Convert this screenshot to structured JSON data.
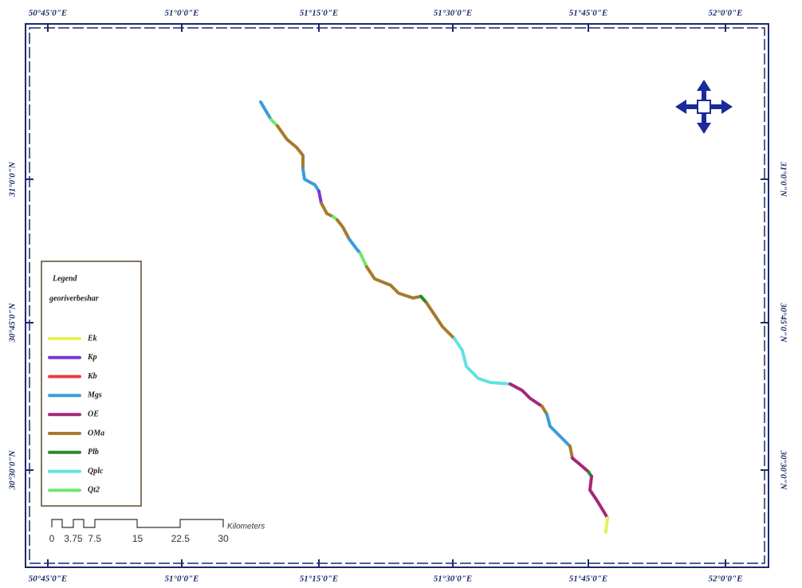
{
  "top_labels": [
    "50°45'0\"E",
    "51°0'0\"E",
    "51°15'0\"E",
    "51°30'0\"E",
    "51°45'0\"E",
    "52°0'0\"E"
  ],
  "bottom_labels": [
    "50°45'0\"E",
    "51°0'0\"E",
    "51°15'0\"E",
    "51°30'0\"E",
    "51°45'0\"E",
    "52°0'0\"E"
  ],
  "left_labels": [
    "31°0'0\"N",
    "30°45'0\"N",
    "30°30'0\"N"
  ],
  "right_labels": [
    "31°0'0\"N",
    "30°45'0\"N",
    "30°30'0\"N"
  ],
  "legend": {
    "title": "Legend",
    "layer": "georiverbeshar",
    "items": [
      {
        "name": "Ek",
        "color": "#e3f25c"
      },
      {
        "name": "Kp",
        "color": "#7a35d8"
      },
      {
        "name": "Kb",
        "color": "#e5403c"
      },
      {
        "name": "Mgs",
        "color": "#3d9bdb"
      },
      {
        "name": "OE",
        "color": "#a3287a"
      },
      {
        "name": "OMa",
        "color": "#a77a2c"
      },
      {
        "name": "Plb",
        "color": "#2b8a2b"
      },
      {
        "name": "Qplc",
        "color": "#5ee3e0"
      },
      {
        "name": "Qt2",
        "color": "#6de86b"
      }
    ]
  },
  "scale": {
    "ticks": [
      0,
      3.75,
      7.5,
      15,
      22.5,
      30
    ],
    "unit": "Kilometers"
  }
}
